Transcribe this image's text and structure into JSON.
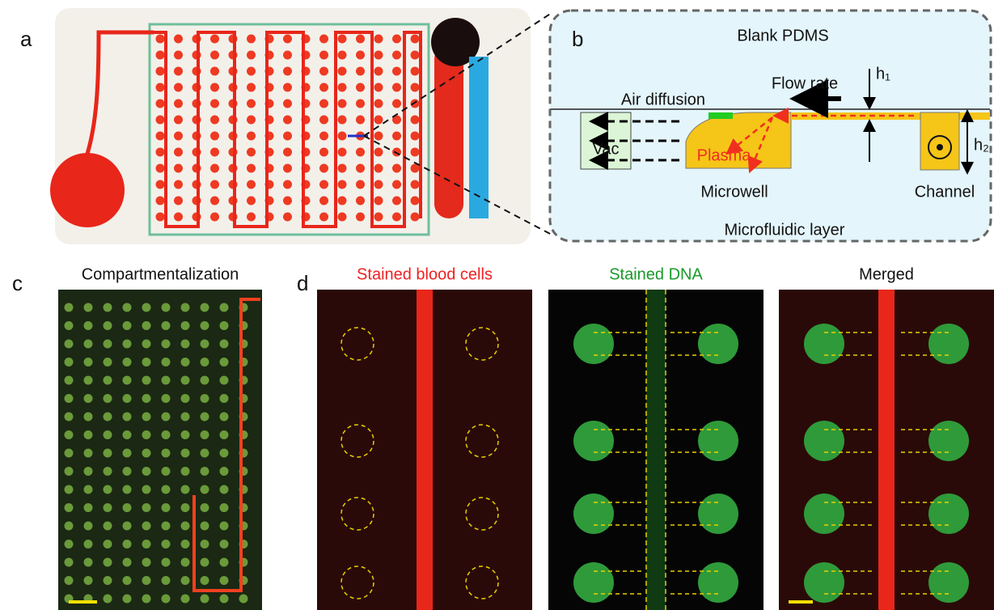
{
  "panel_labels": [
    "a",
    "b",
    "c",
    "d"
  ],
  "schematic": {
    "top": "Blank PDMS",
    "h1": "h₁",
    "flow": "Flow rate",
    "air": "Air diffusion",
    "vac": "Vac",
    "plasma": "Plasma",
    "h2": "h₂",
    "microwell": "Microwell",
    "channel": "Channel",
    "bottom": "Microfluidic layer"
  },
  "panel_c_title": "Compartmentalization",
  "panel_d_titles": [
    "Stained blood cells",
    "Stained DNA",
    "Merged"
  ]
}
